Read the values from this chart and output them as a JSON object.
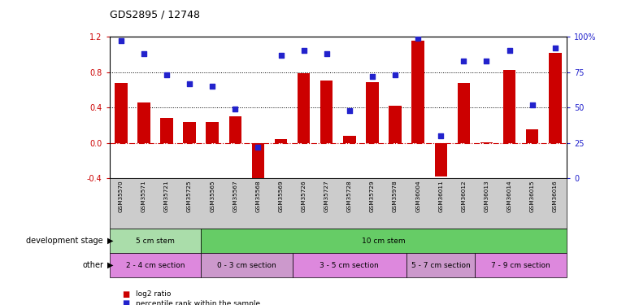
{
  "title": "GDS2895 / 12748",
  "categories": [
    "GSM35570",
    "GSM35571",
    "GSM35721",
    "GSM35725",
    "GSM35565",
    "GSM35567",
    "GSM35568",
    "GSM35569",
    "GSM35726",
    "GSM35727",
    "GSM35728",
    "GSM35729",
    "GSM35978",
    "GSM36004",
    "GSM36011",
    "GSM36012",
    "GSM36013",
    "GSM36014",
    "GSM36015",
    "GSM36016"
  ],
  "log2_ratio": [
    0.68,
    0.46,
    0.28,
    0.24,
    0.24,
    0.3,
    -0.52,
    0.04,
    0.79,
    0.7,
    0.08,
    0.69,
    0.42,
    1.15,
    -0.38,
    0.68,
    0.01,
    0.82,
    0.15,
    1.02
  ],
  "percentile": [
    97,
    88,
    73,
    67,
    65,
    49,
    22,
    87,
    90,
    88,
    48,
    72,
    73,
    99,
    30,
    83,
    83,
    90,
    52,
    92
  ],
  "ylim_left": [
    -0.4,
    1.2
  ],
  "ylim_right": [
    0,
    100
  ],
  "yticks_left": [
    -0.4,
    0.0,
    0.4,
    0.8,
    1.2
  ],
  "yticks_right": [
    0,
    25,
    50,
    75,
    100
  ],
  "ytick_labels_right": [
    "0",
    "25",
    "50",
    "75",
    "100%"
  ],
  "hlines": [
    0.8,
    0.4
  ],
  "bar_color": "#cc0000",
  "dot_color": "#2222cc",
  "zero_line_color": "#cc0000",
  "dev_stage_row": {
    "label": "development stage",
    "groups": [
      {
        "text": "5 cm stem",
        "color": "#aaddaa",
        "start": 0,
        "end": 4
      },
      {
        "text": "10 cm stem",
        "color": "#66cc66",
        "start": 4,
        "end": 20
      }
    ]
  },
  "other_row": {
    "label": "other",
    "groups": [
      {
        "text": "2 - 4 cm section",
        "color": "#dd88dd",
        "start": 0,
        "end": 4
      },
      {
        "text": "0 - 3 cm section",
        "color": "#cc99cc",
        "start": 4,
        "end": 8
      },
      {
        "text": "3 - 5 cm section",
        "color": "#dd88dd",
        "start": 8,
        "end": 13
      },
      {
        "text": "5 - 7 cm section",
        "color": "#cc99cc",
        "start": 13,
        "end": 16
      },
      {
        "text": "7 - 9 cm section",
        "color": "#dd88dd",
        "start": 16,
        "end": 20
      }
    ]
  },
  "legend_items": [
    {
      "label": "log2 ratio",
      "color": "#cc0000"
    },
    {
      "label": "percentile rank within the sample",
      "color": "#2222cc"
    }
  ],
  "xtick_bg": "#cccccc",
  "background_color": "#ffffff"
}
